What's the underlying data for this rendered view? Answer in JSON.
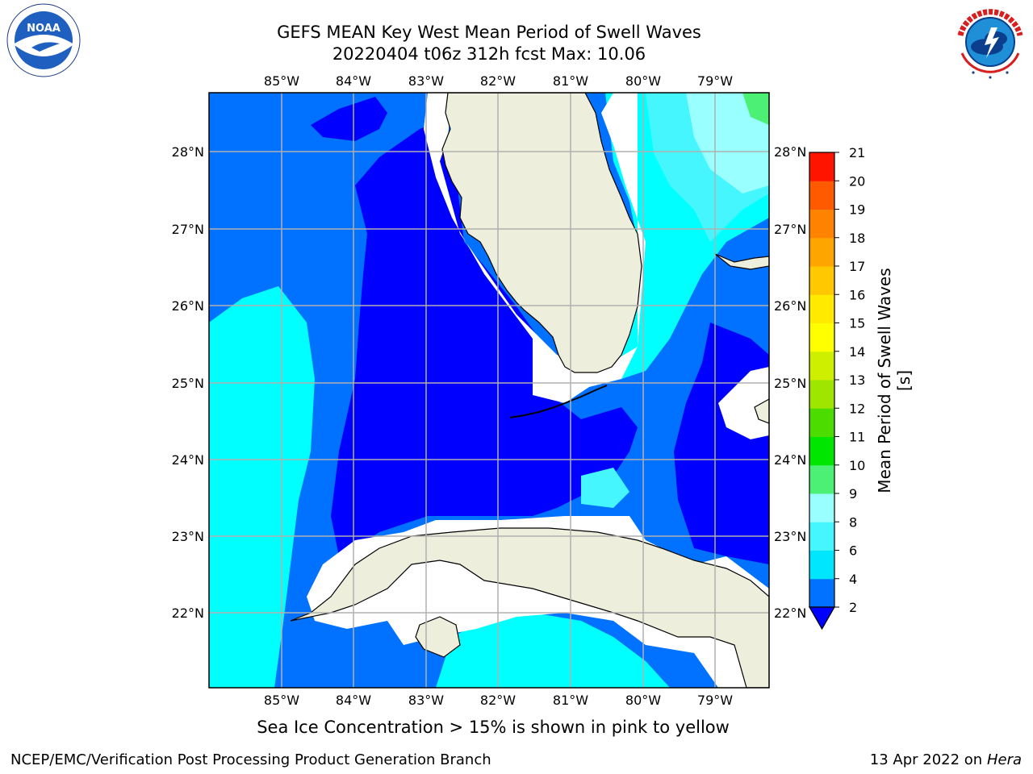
{
  "header": {
    "title_line1": "GEFS MEAN Key West Mean Period of Swell Waves",
    "title_line2": "20220404 t06z 312h fcst   Max: 10.06"
  },
  "logos": {
    "left": "noaa-logo",
    "right": "national-weather-service-logo"
  },
  "map": {
    "projection": "lat-lon",
    "lon_range": [
      -86.0,
      -78.3
    ],
    "lat_range": [
      21.0,
      28.8
    ],
    "grid": true,
    "lon_ticks": [
      "85°W",
      "84°W",
      "83°W",
      "82°W",
      "81°W",
      "80°W",
      "79°W"
    ],
    "lat_ticks": [
      "28°N",
      "27°N",
      "26°N",
      "25°N",
      "24°N",
      "23°N",
      "22°N"
    ],
    "land_color": "#eeeedd",
    "no_data_color": "#ffffff"
  },
  "colorbar": {
    "label": "Mean Period of Swell Waves [s]",
    "ticks": [
      "2",
      "4",
      "6",
      "8",
      "9",
      "10",
      "11",
      "12",
      "13",
      "14",
      "15",
      "16",
      "17",
      "18",
      "19",
      "20",
      "21"
    ],
    "colors": [
      "#0072ff",
      "#00e6ff",
      "#45f6ff",
      "#99ffff",
      "#4cf075",
      "#00e600",
      "#4cdc00",
      "#9ee600",
      "#cfef00",
      "#ffff00",
      "#ffea00",
      "#ffc800",
      "#ffa500",
      "#ff8200",
      "#ff5a00",
      "#ff1400"
    ],
    "under_color": "#0000ff"
  },
  "footer": {
    "note": "Sea Ice Concentration > 15% is shown in pink to yellow",
    "credit_left": "NCEP/EMC/Verification Post Processing Product Generation Branch",
    "credit_date": "13 Apr 2022 on ",
    "credit_host": "Hera"
  }
}
